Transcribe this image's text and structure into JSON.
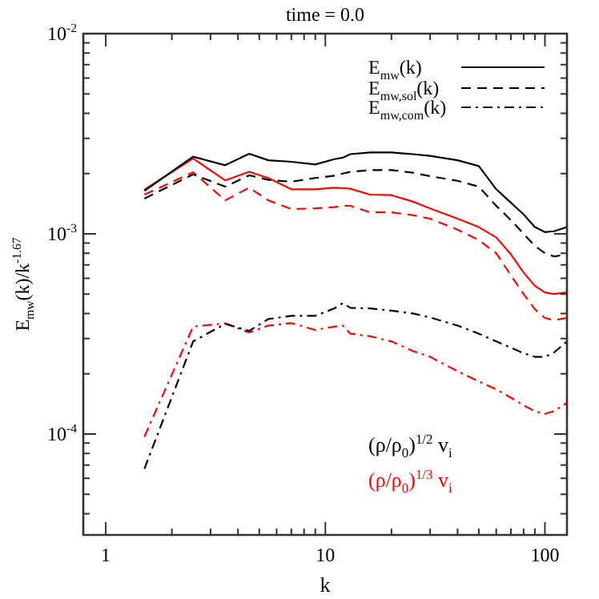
{
  "chart_data": {
    "type": "line",
    "title": "time = 0.0",
    "xlabel": "k",
    "ylabel": "E$_{mw}$(k)/k$^{-1.67}$",
    "x": [
      1.5,
      2.5,
      3.5,
      4.5,
      5.5,
      7,
      9,
      11,
      12,
      13,
      16,
      20,
      25,
      30,
      40,
      50,
      60,
      70,
      80,
      90,
      100,
      110,
      126
    ],
    "series": [
      {
        "name": "E$_{mw}$(k)",
        "color": "#000000",
        "line_style": "solid",
        "values": [
          0.00164,
          0.00243,
          0.0022,
          0.00251,
          0.00233,
          0.00229,
          0.00222,
          0.00236,
          0.0024,
          0.0025,
          0.00255,
          0.00255,
          0.0025,
          0.00245,
          0.00233,
          0.00218,
          0.00167,
          0.00143,
          0.00125,
          0.00108,
          0.00102,
          0.00103,
          0.00108
        ]
      },
      {
        "name": "E$_{mw,sol}$(k)",
        "color": "#000000",
        "line_style": "dashed",
        "values": [
          0.0015,
          0.00198,
          0.00172,
          0.00196,
          0.00186,
          0.00182,
          0.0019,
          0.00195,
          0.002,
          0.00204,
          0.00208,
          0.00208,
          0.00202,
          0.00194,
          0.00184,
          0.00172,
          0.00138,
          0.00117,
          0.001,
          0.00087,
          0.0008,
          0.00077,
          0.00079
        ]
      },
      {
        "name": "E$_{mw,com}$(k)",
        "color": "#000000",
        "line_style": "dashdot",
        "values": [
          6.7e-05,
          0.00029,
          0.000355,
          0.000327,
          0.000375,
          0.000389,
          0.000389,
          0.000424,
          0.00045,
          0.000427,
          0.000424,
          0.000413,
          0.0004,
          0.000382,
          0.000348,
          0.000317,
          0.00029,
          0.00027,
          0.000253,
          0.000243,
          0.000243,
          0.000255,
          0.00029
        ]
      },
      {
        "color": "#ff0000",
        "line_style": "solid",
        "values": [
          0.00166,
          0.00238,
          0.00185,
          0.00204,
          0.0019,
          0.00167,
          0.00167,
          0.0017,
          0.00169,
          0.00168,
          0.00157,
          0.00156,
          0.00145,
          0.00134,
          0.00119,
          0.00108,
          0.00096,
          0.00079,
          0.00064,
          0.00055,
          0.00051,
          0.0005,
          0.00051
        ]
      },
      {
        "color": "#ff0000",
        "line_style": "dashed",
        "values": [
          0.00157,
          0.00203,
          0.00147,
          0.0017,
          0.00147,
          0.00133,
          0.00134,
          0.00136,
          0.00138,
          0.00138,
          0.00128,
          0.00128,
          0.00124,
          0.00119,
          0.00105,
          0.00093,
          0.0008,
          0.00062,
          0.0005,
          0.00042,
          0.00038,
          0.00037,
          0.00038
        ]
      },
      {
        "color": "#ff0000",
        "line_style": "dashdot",
        "values": [
          9.7e-05,
          0.000344,
          0.000357,
          0.000321,
          0.000348,
          0.000358,
          0.000331,
          0.000344,
          0.000348,
          0.000317,
          0.000308,
          0.00029,
          0.00026,
          0.000243,
          0.000206,
          0.000183,
          0.000167,
          0.000152,
          0.000139,
          0.00013,
          0.000126,
          0.00013,
          0.000143
        ]
      }
    ],
    "log": "xy",
    "legend": "top right",
    "xlim": [
      0.79,
      126
    ],
    "ylim": [
      3.13e-05,
      0.01
    ],
    "xticks": [
      1,
      {
        "value": 2,
        "label": null
      },
      {
        "value": 3,
        "label": null
      },
      {
        "value": 4,
        "label": null
      },
      {
        "value": 5,
        "label": null
      },
      {
        "value": 6,
        "label": null
      },
      {
        "value": 7,
        "label": null
      },
      {
        "value": 8,
        "label": null
      },
      {
        "value": 9,
        "label": null
      },
      10,
      {
        "value": 20,
        "label": null
      },
      {
        "value": 30,
        "label": null
      },
      {
        "value": 40,
        "label": null
      },
      {
        "value": 50,
        "label": null
      },
      {
        "value": 60,
        "label": null
      },
      {
        "value": 70,
        "label": null
      },
      {
        "value": 80,
        "label": null
      },
      {
        "value": 90,
        "label": null
      },
      100
    ],
    "yticks": [
      {
        "value": 4e-05,
        "label": null
      },
      {
        "value": 5e-05,
        "label": null
      },
      {
        "value": 6e-05,
        "label": null
      },
      {
        "value": 7e-05,
        "label": null
      },
      {
        "value": 8e-05,
        "label": null
      },
      {
        "value": 9e-05,
        "label": null
      },
      {
        "value": 0.0001,
        "label": "10$^{-4}$"
      },
      {
        "value": 0.0002,
        "label": null
      },
      {
        "value": 0.0003,
        "label": null
      },
      {
        "value": 0.0004,
        "label": null
      },
      {
        "value": 0.0005,
        "label": null
      },
      {
        "value": 0.0006,
        "label": null
      },
      {
        "value": 0.0007,
        "label": null
      },
      {
        "value": 0.0008,
        "label": null
      },
      {
        "value": 0.0009,
        "label": null
      },
      {
        "value": 0.001,
        "label": "10$^{-3}$"
      },
      {
        "value": 0.002,
        "label": null
      },
      {
        "value": 0.003,
        "label": null
      },
      {
        "value": 0.004,
        "label": null
      },
      {
        "value": 0.005,
        "label": null
      },
      {
        "value": 0.006,
        "label": null
      },
      {
        "value": 0.007,
        "label": null
      },
      {
        "value": 0.008,
        "label": null
      },
      {
        "value": 0.009,
        "label": null
      },
      {
        "value": 0.01,
        "label": "10$^{-2}$"
      }
    ],
    "annotations": [
      "(ρ/ρ$_{0}$)$^{1/2}$ v$_{i}$",
      "(ρ/ρ$_{0}$)$^{1/3}$ v$_{i}$"
    ]
  }
}
